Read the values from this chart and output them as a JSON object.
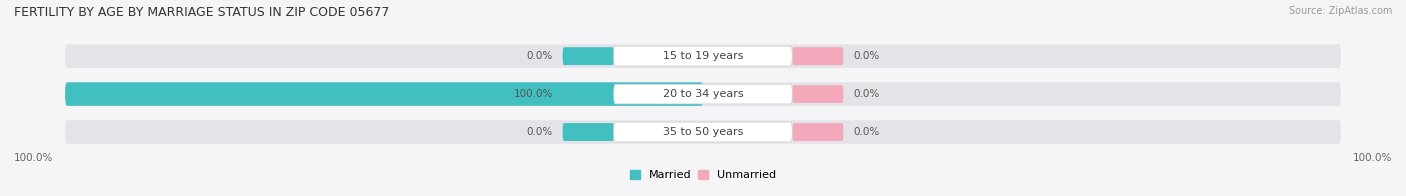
{
  "title": "FERTILITY BY AGE BY MARRIAGE STATUS IN ZIP CODE 05677",
  "source": "Source: ZipAtlas.com",
  "categories": [
    "15 to 19 years",
    "20 to 34 years",
    "35 to 50 years"
  ],
  "married_vals": [
    0.0,
    100.0,
    0.0
  ],
  "unmarried_vals": [
    0.0,
    0.0,
    0.0
  ],
  "married_color": "#42bfc0",
  "unmarried_color": "#f4a8bc",
  "bg_bar_color": "#e4e4e8",
  "bg_color": "#f5f5f7",
  "title_fontsize": 9,
  "source_fontsize": 7,
  "label_fontsize": 7.5,
  "cat_fontsize": 8,
  "bar_height": 0.62,
  "figsize": [
    14.06,
    1.96
  ],
  "dpi": 100,
  "max_val": 100.0,
  "left_axis_label": "100.0%",
  "right_axis_label": "100.0%"
}
